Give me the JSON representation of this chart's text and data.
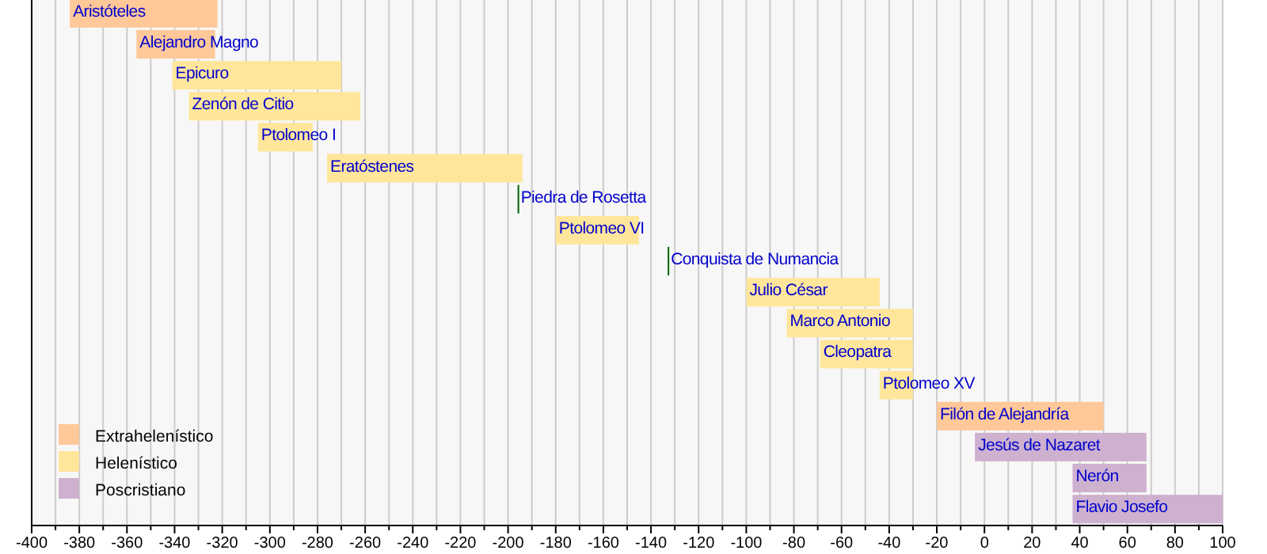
{
  "chart_data": {
    "type": "bar",
    "orientation": "horizontal",
    "categories": [
      "Aristóteles",
      "Alejandro Magno",
      "Epicuro",
      "Zenón de Citio",
      "Ptolomeo I",
      "Eratóstenes",
      "Piedra de Rosetta",
      "Ptolomeo VI",
      "Conquista de Numancia",
      "Julio César",
      "Marco Antonio",
      "Cleopatra",
      "Ptolomeo XV",
      "Filón de Alejandría",
      "Jesús de Nazaret",
      "Nerón",
      "Flavio Josefo"
    ],
    "series": [
      {
        "name": "Extrahelenístico",
        "color": "#fec898",
        "base": [
          -384,
          -356,
          null,
          null,
          null,
          null,
          null,
          null,
          null,
          null,
          null,
          null,
          null,
          -20,
          null,
          null,
          null
        ],
        "values": [
          62,
          33,
          null,
          null,
          null,
          null,
          null,
          null,
          null,
          null,
          null,
          null,
          null,
          70,
          null,
          null,
          null
        ]
      },
      {
        "name": "Helenístico",
        "color": "#ffe69b",
        "base": [
          null,
          null,
          -341,
          -334,
          -305,
          -276,
          null,
          -180,
          null,
          -100,
          -83,
          -69,
          -44,
          null,
          null,
          null,
          null
        ],
        "values": [
          null,
          null,
          71,
          72,
          23,
          82,
          null,
          35,
          null,
          56,
          53,
          39,
          14,
          null,
          null,
          null,
          null
        ]
      },
      {
        "name": "Poscristiano",
        "color": "#cdb1cf",
        "base": [
          null,
          null,
          null,
          null,
          null,
          null,
          null,
          null,
          null,
          null,
          null,
          null,
          null,
          null,
          -4,
          37,
          37
        ],
        "values": [
          null,
          null,
          null,
          null,
          null,
          null,
          null,
          null,
          null,
          null,
          null,
          null,
          null,
          null,
          72,
          31,
          63
        ]
      },
      {
        "color": "#006400",
        "base": [
          null,
          null,
          null,
          null,
          null,
          null,
          -196,
          null,
          -133,
          null,
          null,
          null,
          null,
          null,
          null,
          null,
          null
        ],
        "values": [
          null,
          null,
          null,
          null,
          null,
          null,
          0,
          null,
          0,
          null,
          null,
          null,
          null,
          null,
          null,
          null,
          null
        ]
      }
    ],
    "xlim": [
      -400,
      100
    ],
    "xticks": [
      -400,
      {
        "value": -390,
        "label": null
      },
      -380,
      {
        "value": -370,
        "label": null
      },
      -360,
      {
        "value": -350,
        "label": null
      },
      -340,
      {
        "value": -330,
        "label": null
      },
      -320,
      {
        "value": -310,
        "label": null
      },
      -300,
      {
        "value": -290,
        "label": null
      },
      -280,
      {
        "value": -270,
        "label": null
      },
      -260,
      {
        "value": -250,
        "label": null
      },
      -240,
      {
        "value": -230,
        "label": null
      },
      -220,
      {
        "value": -210,
        "label": null
      },
      -200,
      {
        "value": -190,
        "label": null
      },
      -180,
      {
        "value": -170,
        "label": null
      },
      -160,
      {
        "value": -150,
        "label": null
      },
      -140,
      {
        "value": -130,
        "label": null
      },
      -120,
      {
        "value": -110,
        "label": null
      },
      -100,
      {
        "value": -90,
        "label": null
      },
      -80,
      {
        "value": -70,
        "label": null
      },
      -60,
      {
        "value": -50,
        "label": null
      },
      -40,
      {
        "value": -30,
        "label": null
      },
      -20,
      {
        "value": -10,
        "label": null
      },
      0,
      {
        "value": 10,
        "label": null
      },
      20,
      {
        "value": 30,
        "label": null
      },
      40,
      {
        "value": 50,
        "label": null
      },
      60,
      {
        "value": 70,
        "label": null
      },
      80,
      {
        "value": 90,
        "label": null
      },
      100
    ],
    "grid": "x",
    "legend": "bottom left"
  }
}
